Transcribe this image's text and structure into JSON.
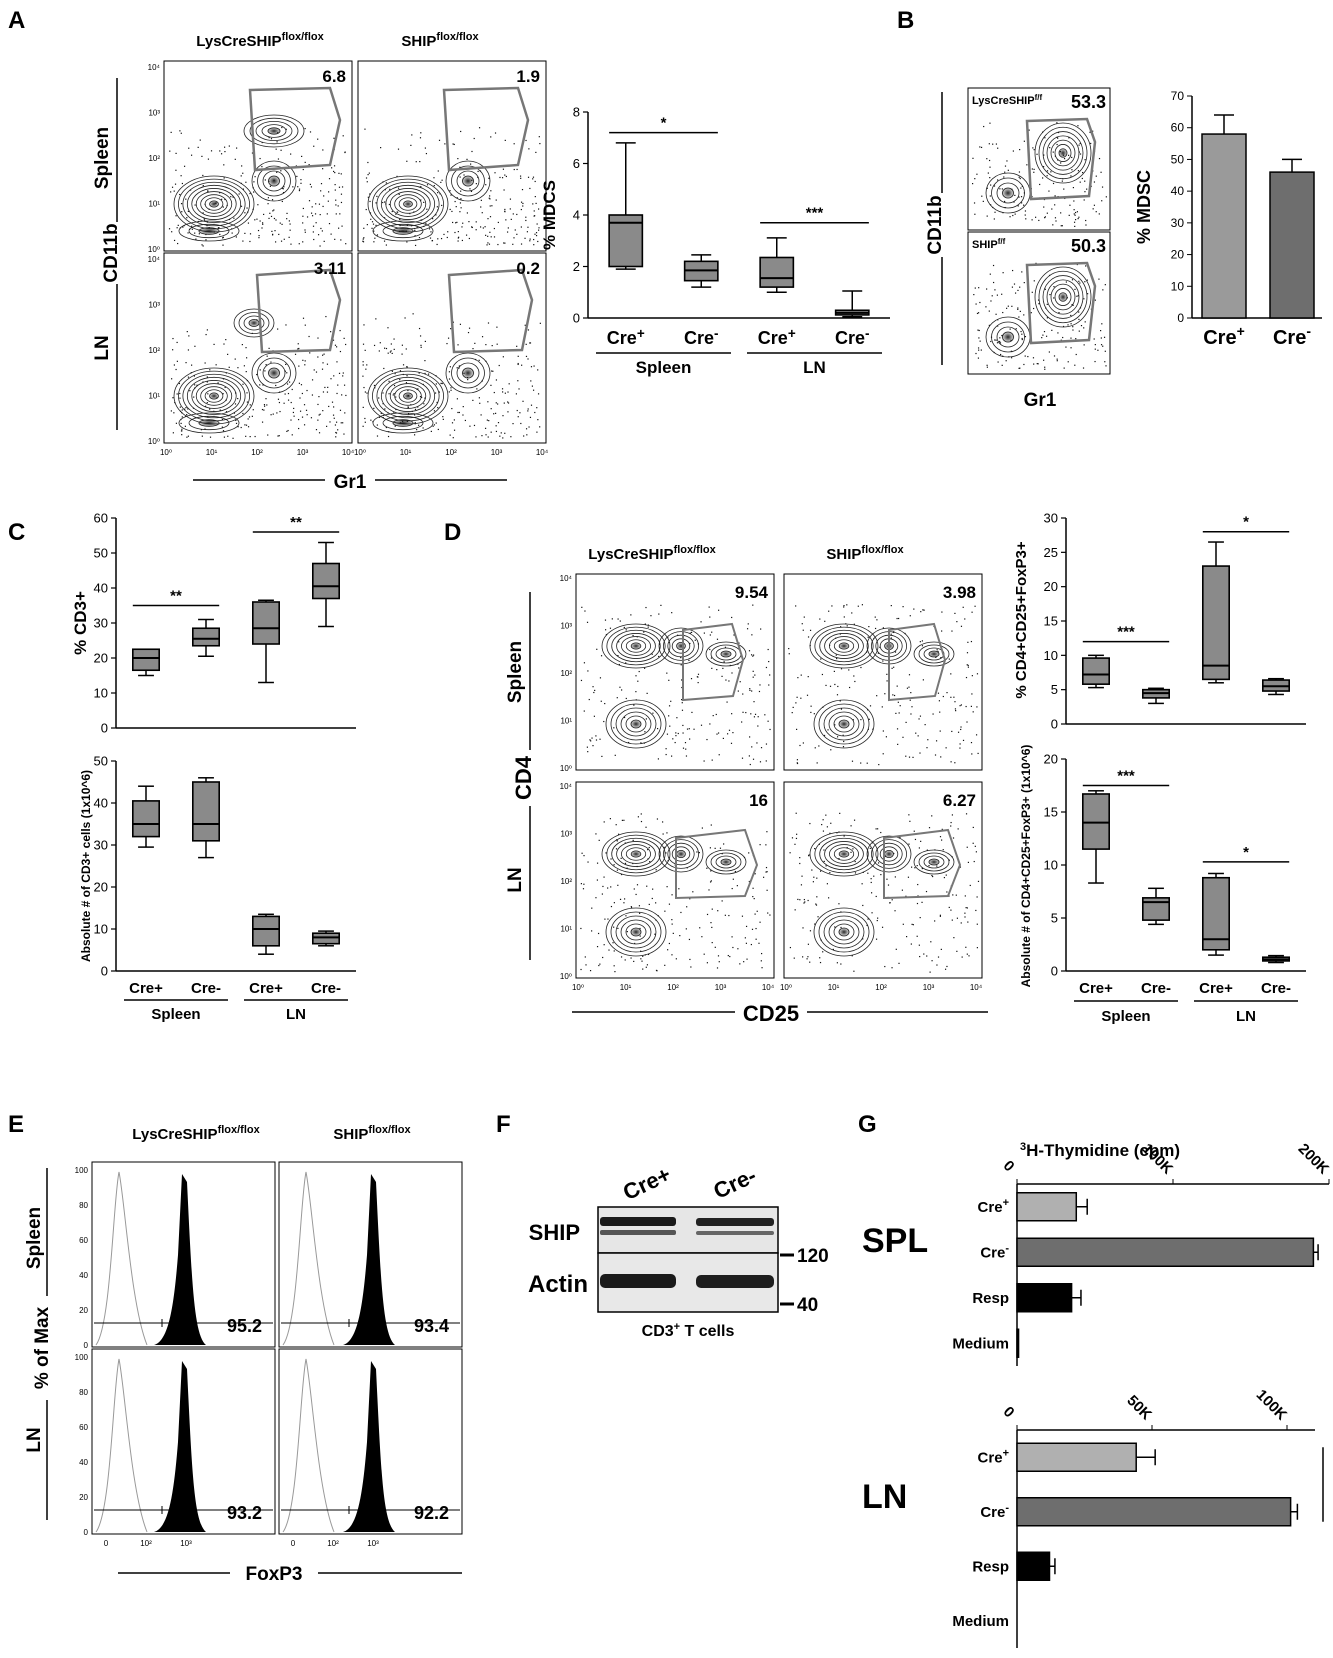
{
  "panels": {
    "A": {
      "letter": "A",
      "col1": "LysCreSHIP",
      "col1_sup": "flox/flox",
      "col2": "SHIP",
      "col2_sup": "flox/flox",
      "row1": "Spleen",
      "row2": "LN",
      "yaxis": "CD11b",
      "xaxis": "Gr1",
      "gate_values": [
        "6.8",
        "1.9",
        "3.11",
        "0.2"
      ],
      "yticks": [
        "10⁰",
        "10¹",
        "10²",
        "10³",
        "10⁴"
      ],
      "xticks": [
        "10⁰",
        "10¹",
        "10²",
        "10³",
        "10⁴"
      ]
    },
    "B": {
      "letter": "B",
      "label1": "LysCreSHIP",
      "label1_sup": "f/f",
      "label2": "SHIP",
      "label2_sup": "f/f",
      "values": [
        "53.3",
        "50.3"
      ],
      "yaxis": "CD11b",
      "xaxis": "Gr1"
    },
    "C": {
      "letter": "C"
    },
    "D": {
      "letter": "D",
      "col1": "LysCreSHIP",
      "col1_sup": "flox/flox",
      "col2": "SHIP",
      "col2_sup": "flox/flox",
      "row1": "Spleen",
      "row2": "LN",
      "yaxis": "CD4",
      "xaxis": "CD25",
      "gate_values": [
        "9.54",
        "3.98",
        "16",
        "6.27"
      ]
    },
    "E": {
      "letter": "E",
      "col1": "LysCreSHIP",
      "col1_sup": "flox/flox",
      "col2": "SHIP",
      "col2_sup": "flox/flox",
      "row1": "Spleen",
      "row2": "LN",
      "yaxis": "% of Max",
      "xaxis": "FoxP3",
      "values": [
        "95.2",
        "93.4",
        "93.2",
        "92.2"
      ],
      "yticks": [
        "0",
        "20",
        "40",
        "60",
        "80",
        "100"
      ],
      "xticks": [
        "0",
        "10²",
        "10³"
      ]
    },
    "F": {
      "letter": "F",
      "lanes": [
        "Cre+",
        "Cre-"
      ],
      "rows": [
        "SHIP",
        "Actin"
      ],
      "markers": [
        "120",
        "40"
      ],
      "caption": "CD3",
      "caption_sup": "+",
      "caption_tail": " T cells"
    },
    "G": {
      "letter": "G",
      "axis_title_sup": "3",
      "axis_title": "H-Thymidine (cpm)",
      "groups": [
        "SPL",
        "LN"
      ],
      "sig": "***"
    }
  },
  "chart_data": [
    {
      "id": "A-box",
      "type": "box",
      "ylabel": "% MDCS",
      "ylim": [
        0,
        8
      ],
      "yticks": [
        0,
        2,
        4,
        6,
        8
      ],
      "categories": [
        "Cre+",
        "Cre-",
        "Cre+",
        "Cre-"
      ],
      "groups": [
        "Spleen",
        "LN"
      ],
      "boxes": [
        {
          "min": 1.9,
          "q1": 2.0,
          "median": 3.7,
          "q3": 4.0,
          "max": 6.8,
          "fill": "#8a8a8a"
        },
        {
          "min": 1.2,
          "q1": 1.45,
          "median": 1.85,
          "q3": 2.2,
          "max": 2.45,
          "fill": "#8a8a8a"
        },
        {
          "min": 1.0,
          "q1": 1.2,
          "median": 1.55,
          "q3": 2.35,
          "max": 3.11,
          "fill": "#8a8a8a"
        },
        {
          "min": 0.05,
          "q1": 0.12,
          "median": 0.2,
          "q3": 0.3,
          "max": 1.05,
          "fill": "#8a8a8a"
        }
      ],
      "significance": [
        {
          "label": "*",
          "from": 0,
          "to": 1,
          "y": 7.2
        },
        {
          "label": "***",
          "from": 2,
          "to": 3,
          "y": 3.7
        }
      ]
    },
    {
      "id": "B-bar",
      "type": "bar",
      "ylabel": "% MDSC",
      "ylim": [
        0,
        70
      ],
      "yticks": [
        0,
        10,
        20,
        30,
        40,
        50,
        60,
        70
      ],
      "categories": [
        "Cre+",
        "Cre-"
      ],
      "values": [
        58,
        46
      ],
      "errors": [
        6,
        4
      ],
      "colors": [
        "#9a9a9a",
        "#6e6e6e"
      ]
    },
    {
      "id": "C-top",
      "type": "box",
      "ylabel": "% CD3+",
      "ylim": [
        0,
        60
      ],
      "yticks": [
        0,
        10,
        20,
        30,
        40,
        50,
        60
      ],
      "boxes": [
        {
          "min": 15,
          "q1": 16.5,
          "median": 20,
          "q3": 22.5,
          "max": 22.5,
          "fill": "#8a8a8a"
        },
        {
          "min": 20.5,
          "q1": 23.5,
          "median": 25.5,
          "q3": 28.5,
          "max": 31,
          "fill": "#8a8a8a"
        },
        {
          "min": 13,
          "q1": 24,
          "median": 28.5,
          "q3": 36,
          "max": 36.5,
          "fill": "#8a8a8a"
        },
        {
          "min": 29,
          "q1": 37,
          "median": 40.5,
          "q3": 47,
          "max": 53,
          "fill": "#8a8a8a"
        }
      ],
      "significance": [
        {
          "label": "**",
          "from": 0,
          "to": 1,
          "y": 35
        },
        {
          "label": "**",
          "from": 2,
          "to": 3,
          "y": 56
        }
      ]
    },
    {
      "id": "C-bottom",
      "type": "box",
      "ylabel": "Absolute # of CD3+ cells (1x10^6)",
      "ylim": [
        0,
        50
      ],
      "yticks": [
        0,
        10,
        20,
        30,
        40,
        50
      ],
      "categories": [
        "Cre+",
        "Cre-",
        "Cre+",
        "Cre-"
      ],
      "groups": [
        "Spleen",
        "LN"
      ],
      "boxes": [
        {
          "min": 29.5,
          "q1": 32,
          "median": 35,
          "q3": 40.5,
          "max": 44,
          "fill": "#8a8a8a"
        },
        {
          "min": 27,
          "q1": 31,
          "median": 35,
          "q3": 45,
          "max": 46,
          "fill": "#8a8a8a"
        },
        {
          "min": 4,
          "q1": 6,
          "median": 10,
          "q3": 13,
          "max": 13.5,
          "fill": "#8a8a8a"
        },
        {
          "min": 6,
          "q1": 6.5,
          "median": 8,
          "q3": 9,
          "max": 9.5,
          "fill": "#8a8a8a"
        }
      ]
    },
    {
      "id": "D-top",
      "type": "box",
      "ylabel": "% CD4+CD25+FoxP3+",
      "ylim": [
        0,
        30
      ],
      "yticks": [
        0,
        5,
        10,
        15,
        20,
        25,
        30
      ],
      "boxes": [
        {
          "min": 5.3,
          "q1": 5.8,
          "median": 7.2,
          "q3": 9.6,
          "max": 10,
          "fill": "#8a8a8a"
        },
        {
          "min": 3.0,
          "q1": 3.8,
          "median": 4.5,
          "q3": 5.0,
          "max": 5.2,
          "fill": "#8a8a8a"
        },
        {
          "min": 6,
          "q1": 6.5,
          "median": 8.5,
          "q3": 23,
          "max": 26.5,
          "fill": "#8a8a8a"
        },
        {
          "min": 4.3,
          "q1": 4.8,
          "median": 5.5,
          "q3": 6.4,
          "max": 6.6,
          "fill": "#8a8a8a"
        }
      ],
      "significance": [
        {
          "label": "***",
          "from": 0,
          "to": 1,
          "y": 12
        },
        {
          "label": "*",
          "from": 2,
          "to": 3,
          "y": 28
        }
      ]
    },
    {
      "id": "D-bottom",
      "type": "box",
      "ylabel": "Absolute # of CD4+CD25+FoxP3+ (1x10^6)",
      "ylim": [
        0,
        20
      ],
      "yticks": [
        0,
        5,
        10,
        15,
        20
      ],
      "categories": [
        "Cre+",
        "Cre-",
        "Cre+",
        "Cre-"
      ],
      "groups": [
        "Spleen",
        "LN"
      ],
      "boxes": [
        {
          "min": 8.3,
          "q1": 11.5,
          "median": 14,
          "q3": 16.7,
          "max": 17,
          "fill": "#8a8a8a"
        },
        {
          "min": 4.4,
          "q1": 4.8,
          "median": 6.5,
          "q3": 6.9,
          "max": 7.8,
          "fill": "#8a8a8a"
        },
        {
          "min": 1.5,
          "q1": 2,
          "median": 3,
          "q3": 8.8,
          "max": 9.2,
          "fill": "#8a8a8a"
        },
        {
          "min": 0.8,
          "q1": 0.95,
          "median": 1.1,
          "q3": 1.3,
          "max": 1.45,
          "fill": "#8a8a8a"
        }
      ],
      "significance": [
        {
          "label": "***",
          "from": 0,
          "to": 1,
          "y": 17.5
        },
        {
          "label": "*",
          "from": 2,
          "to": 3,
          "y": 10.3
        }
      ]
    },
    {
      "id": "G-SPL",
      "type": "bar",
      "orientation": "horizontal",
      "xlim": [
        0,
        200000
      ],
      "xticks": [
        "0",
        "100K",
        "200K"
      ],
      "categories": [
        "Cre+",
        "Cre-",
        "Resp",
        "Medium"
      ],
      "values": [
        38000,
        190000,
        35000,
        1000
      ],
      "errors": [
        7000,
        3000,
        6000,
        0
      ],
      "colors": [
        "#b0b0b0",
        "#6e6e6e",
        "#000000",
        "#000000"
      ]
    },
    {
      "id": "G-LN",
      "type": "bar",
      "orientation": "horizontal",
      "xlim": [
        0,
        110000
      ],
      "xticks": [
        "0",
        "50K",
        "100K"
      ],
      "categories": [
        "Cre+",
        "Cre-",
        "Resp",
        "Medium"
      ],
      "values": [
        44000,
        101000,
        12000,
        0
      ],
      "errors": [
        7000,
        2500,
        2000,
        0
      ],
      "colors": [
        "#b0b0b0",
        "#6e6e6e",
        "#000000",
        "#000000"
      ]
    }
  ]
}
